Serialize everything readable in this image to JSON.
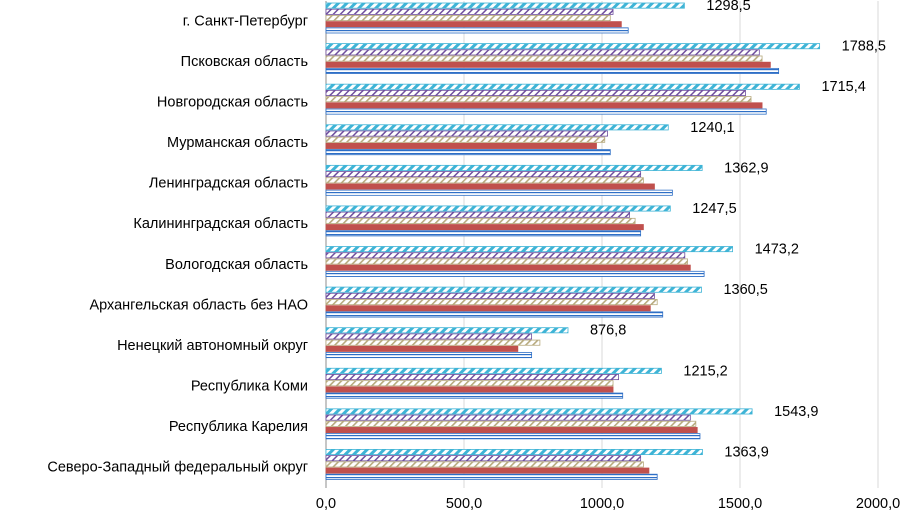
{
  "chart_data": {
    "type": "bar",
    "orientation": "horizontal",
    "title": "",
    "xlabel": "",
    "ylabel": "",
    "xlim": [
      0,
      2000
    ],
    "x_ticks": [
      0,
      500,
      1000,
      1500,
      2000
    ],
    "x_tick_labels": [
      "0,0",
      "500,0",
      "1000,0",
      "1500,0",
      "2000,0"
    ],
    "grid": true,
    "legend": "none",
    "categories": [
      "г. Санкт-Петербург",
      "Псковская область",
      "Новгородская область",
      "Мурманская область",
      "Ленинградская область",
      "Калининградская область",
      "Вологодская область",
      "Архангельская область   без НАО",
      "Ненецкий автономный округ",
      "Республика Коми",
      "Республика Карелия",
      "Северо-Западный  федеральный округ"
    ],
    "series": [
      {
        "name": "series-1",
        "color": "#3fb4d6",
        "pattern": "diagonal",
        "labeled": true,
        "values": [
          1298.5,
          1788.5,
          1715.4,
          1240.1,
          1362.9,
          1247.5,
          1473.2,
          1360.5,
          876.8,
          1215.2,
          1543.9,
          1363.9
        ],
        "labels": [
          "1298,5",
          "1788,5",
          "1715,4",
          "1240,1",
          "1362,9",
          "1247,5",
          "1473,2",
          "1360,5",
          "876,8",
          "1215,2",
          "1543,9",
          "1363,9"
        ]
      },
      {
        "name": "series-2",
        "color": "#6f4f9e",
        "pattern": "diagonal-thin",
        "labeled": false,
        "values": [
          1040,
          1570,
          1520,
          1020,
          1140,
          1100,
          1300,
          1190,
          745,
          1060,
          1320,
          1140
        ]
      },
      {
        "name": "series-3",
        "color": "#c9bd95",
        "pattern": "diagonal-thin",
        "labeled": false,
        "values": [
          1030,
          1580,
          1540,
          1010,
          1150,
          1120,
          1310,
          1200,
          775,
          1040,
          1340,
          1150
        ]
      },
      {
        "name": "series-4",
        "color": "#c0504d",
        "pattern": "solid",
        "labeled": false,
        "values": [
          1070,
          1610,
          1580,
          980,
          1190,
          1150,
          1320,
          1175,
          695,
          1040,
          1345,
          1170
        ]
      },
      {
        "name": "series-5",
        "color": "#2e6fc6",
        "pattern": "horizontal",
        "labeled": false,
        "values": [
          1095,
          1640,
          1595,
          1030,
          1255,
          1140,
          1370,
          1220,
          745,
          1075,
          1355,
          1200
        ]
      }
    ]
  }
}
